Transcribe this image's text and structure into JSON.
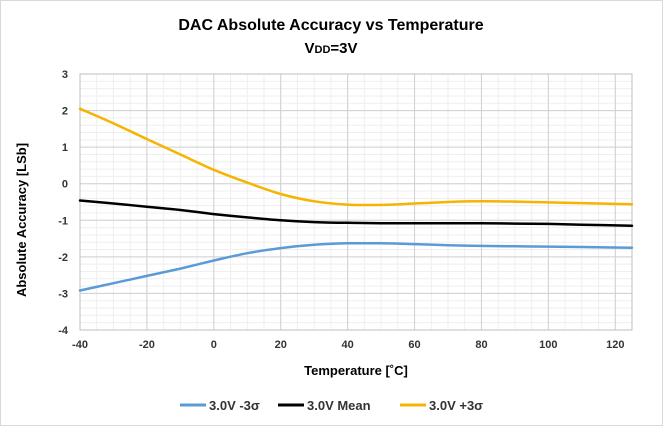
{
  "chart_data": {
    "type": "line",
    "title": "DAC Absolute Accuracy vs Temperature",
    "subtitle": "VDD=3V",
    "subtitle_main": "V",
    "subtitle_sub": "DD",
    "subtitle_tail": "=3V",
    "xlabel": "Temperature [˚C]",
    "ylabel": "Absolute Accuracy [LSb]",
    "xlim": [
      -40,
      125
    ],
    "ylim": [
      -4,
      3
    ],
    "xticks": [
      -40,
      -20,
      0,
      20,
      40,
      60,
      80,
      100,
      120
    ],
    "yticks": [
      -4,
      -3,
      -2,
      -1,
      0,
      1,
      2,
      3
    ],
    "grid": true,
    "legend_position": "bottom",
    "series": [
      {
        "name": "3.0V -3σ",
        "color": "#5b9bd5",
        "x": [
          -40,
          -30,
          -20,
          -10,
          0,
          10,
          20,
          30,
          40,
          50,
          60,
          70,
          80,
          90,
          100,
          110,
          125
        ],
        "y": [
          -2.92,
          -2.72,
          -2.52,
          -2.32,
          -2.1,
          -1.9,
          -1.76,
          -1.67,
          -1.63,
          -1.63,
          -1.65,
          -1.68,
          -1.7,
          -1.71,
          -1.72,
          -1.73,
          -1.75
        ]
      },
      {
        "name": "3.0V Mean",
        "color": "#000000",
        "x": [
          -40,
          -30,
          -20,
          -10,
          0,
          10,
          20,
          30,
          40,
          50,
          60,
          70,
          80,
          90,
          100,
          110,
          125
        ],
        "y": [
          -0.46,
          -0.54,
          -0.63,
          -0.72,
          -0.83,
          -0.92,
          -1.0,
          -1.05,
          -1.07,
          -1.08,
          -1.08,
          -1.08,
          -1.08,
          -1.09,
          -1.1,
          -1.12,
          -1.15
        ]
      },
      {
        "name": "3.0V +3σ",
        "color": "#f5b400",
        "x": [
          -40,
          -30,
          -20,
          -10,
          0,
          10,
          20,
          30,
          40,
          50,
          60,
          70,
          80,
          90,
          100,
          110,
          125
        ],
        "y": [
          2.05,
          1.65,
          1.22,
          0.8,
          0.38,
          0.03,
          -0.28,
          -0.48,
          -0.57,
          -0.58,
          -0.54,
          -0.5,
          -0.48,
          -0.49,
          -0.51,
          -0.53,
          -0.56
        ]
      }
    ]
  }
}
